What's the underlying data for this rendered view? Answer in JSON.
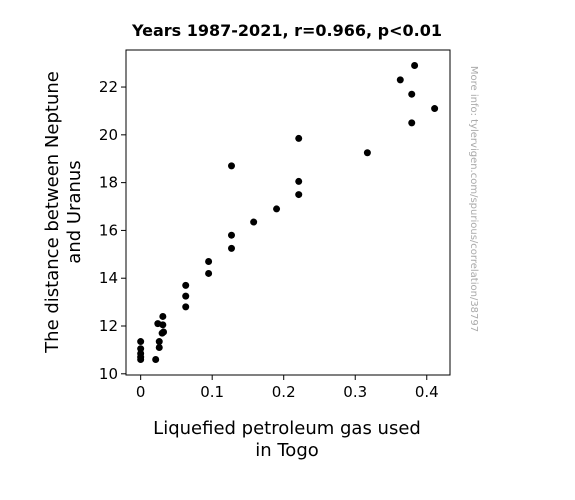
{
  "chart_data": {
    "type": "scatter",
    "title": "Years 1987-2021, r=0.966, p<0.01",
    "xlabel": [
      "Liquefied petroleum gas used",
      "in Togo"
    ],
    "ylabel": [
      "The distance between Neptune",
      "and Uranus"
    ],
    "xlim": [
      -0.0205,
      0.4325
    ],
    "ylim": [
      9.95,
      23.55
    ],
    "xticks": [
      0,
      0.1,
      0.2,
      0.3,
      0.4
    ],
    "xtick_labels": [
      "0",
      "0.1",
      "0.2",
      "0.3",
      "0.4"
    ],
    "yticks": [
      10,
      12,
      14,
      16,
      18,
      20,
      22
    ],
    "ytick_labels": [
      "10",
      "12",
      "14",
      "16",
      "18",
      "20",
      "22"
    ],
    "grid": false,
    "marker_color": "#000000",
    "watermark": "More info: tylervigen.com/spurious/correlation/38797",
    "points": [
      {
        "x": 0,
        "y": 10.6
      },
      {
        "x": 0,
        "y": 10.7
      },
      {
        "x": 0,
        "y": 10.85
      },
      {
        "x": 0,
        "y": 11.05
      },
      {
        "x": 0,
        "y": 11.35
      },
      {
        "x": 0.021,
        "y": 10.6
      },
      {
        "x": 0.024,
        "y": 12.1
      },
      {
        "x": 0.026,
        "y": 11.1
      },
      {
        "x": 0.026,
        "y": 11.35
      },
      {
        "x": 0.03,
        "y": 11.7
      },
      {
        "x": 0.031,
        "y": 12.05
      },
      {
        "x": 0.031,
        "y": 12.4
      },
      {
        "x": 0.032,
        "y": 11.75
      },
      {
        "x": 0.063,
        "y": 12.8
      },
      {
        "x": 0.063,
        "y": 13.25
      },
      {
        "x": 0.063,
        "y": 13.7
      },
      {
        "x": 0.095,
        "y": 14.2
      },
      {
        "x": 0.095,
        "y": 14.7
      },
      {
        "x": 0.127,
        "y": 15.25
      },
      {
        "x": 0.127,
        "y": 15.8
      },
      {
        "x": 0.127,
        "y": 18.7
      },
      {
        "x": 0.158,
        "y": 16.35
      },
      {
        "x": 0.19,
        "y": 16.9
      },
      {
        "x": 0.221,
        "y": 17.5
      },
      {
        "x": 0.221,
        "y": 18.05
      },
      {
        "x": 0.221,
        "y": 19.85
      },
      {
        "x": 0.317,
        "y": 19.25
      },
      {
        "x": 0.363,
        "y": 22.3
      },
      {
        "x": 0.379,
        "y": 20.5
      },
      {
        "x": 0.379,
        "y": 21.7
      },
      {
        "x": 0.383,
        "y": 22.9
      },
      {
        "x": 0.411,
        "y": 21.1
      }
    ]
  }
}
